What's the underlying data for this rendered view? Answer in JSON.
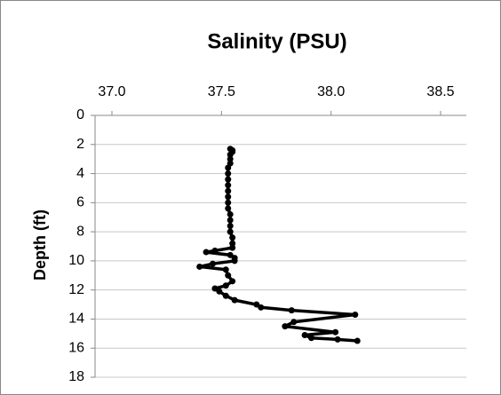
{
  "chart_data": {
    "type": "line",
    "title": "Salinity (PSU)",
    "y_label": "Depth (ft)",
    "x": [
      37.54,
      37.55,
      37.55,
      37.54,
      37.54,
      37.54,
      37.53,
      37.53,
      37.53,
      37.53,
      37.53,
      37.53,
      37.53,
      37.53,
      37.54,
      37.54,
      37.54,
      37.54,
      37.55,
      37.55,
      37.55,
      37.47,
      37.43,
      37.54,
      37.56,
      37.56,
      37.46,
      37.4,
      37.52,
      37.53,
      37.55,
      37.52,
      37.47,
      37.49,
      37.52,
      37.56,
      37.66,
      37.68,
      37.82,
      38.11,
      37.83,
      37.79,
      38.02,
      37.88,
      37.91,
      38.03,
      38.12
    ],
    "values": [
      2.3,
      2.4,
      2.5,
      2.7,
      3.0,
      3.3,
      3.6,
      4.0,
      4.4,
      4.8,
      5.2,
      5.6,
      6.0,
      6.4,
      6.8,
      7.2,
      7.6,
      8.0,
      8.4,
      8.8,
      9.1,
      9.3,
      9.4,
      9.6,
      9.8,
      10.0,
      10.2,
      10.4,
      10.6,
      11.0,
      11.4,
      11.7,
      11.9,
      12.1,
      12.4,
      12.7,
      13.0,
      13.2,
      13.4,
      13.7,
      14.2,
      14.5,
      14.9,
      15.1,
      15.3,
      15.4,
      15.5
    ],
    "color": "#000000",
    "xlim": [
      37.0,
      38.5
    ],
    "xticks": [
      {
        "value": 37.0,
        "label": "37.0"
      },
      37.5,
      {
        "value": 38.0,
        "label": "38.0"
      },
      38.5
    ],
    "ylim": [
      0,
      18
    ],
    "y_inverted": true,
    "yticks": [
      0,
      2,
      4,
      6,
      8,
      10,
      12,
      14,
      16,
      18
    ],
    "grid": true
  }
}
